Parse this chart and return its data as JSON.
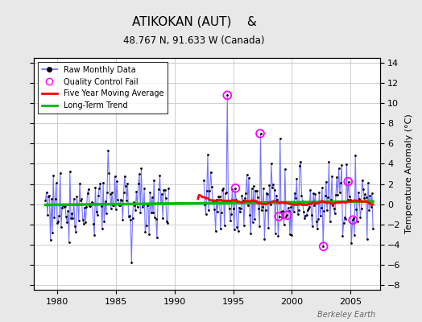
{
  "title": "ATIKOKAN (AUT)    &",
  "subtitle": "48.767 N, 91.633 W (Canada)",
  "ylabel": "Temperature Anomaly (°C)",
  "xlim": [
    1978.0,
    2007.5
  ],
  "ylim": [
    -8.5,
    14.5
  ],
  "yticks": [
    -8,
    -6,
    -4,
    -2,
    0,
    2,
    4,
    6,
    8,
    10,
    12,
    14
  ],
  "xticks": [
    1980,
    1985,
    1990,
    1995,
    2000,
    2005
  ],
  "background_color": "#e8e8e8",
  "plot_bg_color": "#ffffff",
  "grid_color": "#c8c8c8",
  "watermark": "Berkeley Earth",
  "raw_line_color": "#6666ff",
  "raw_dot_color": "#000000",
  "qc_fail_color": "#ff00ff",
  "moving_avg_color": "#ff0000",
  "trend_color": "#00bb00",
  "trend_lw": 2.5,
  "moving_avg_lw": 2.0,
  "raw_lw": 0.8
}
